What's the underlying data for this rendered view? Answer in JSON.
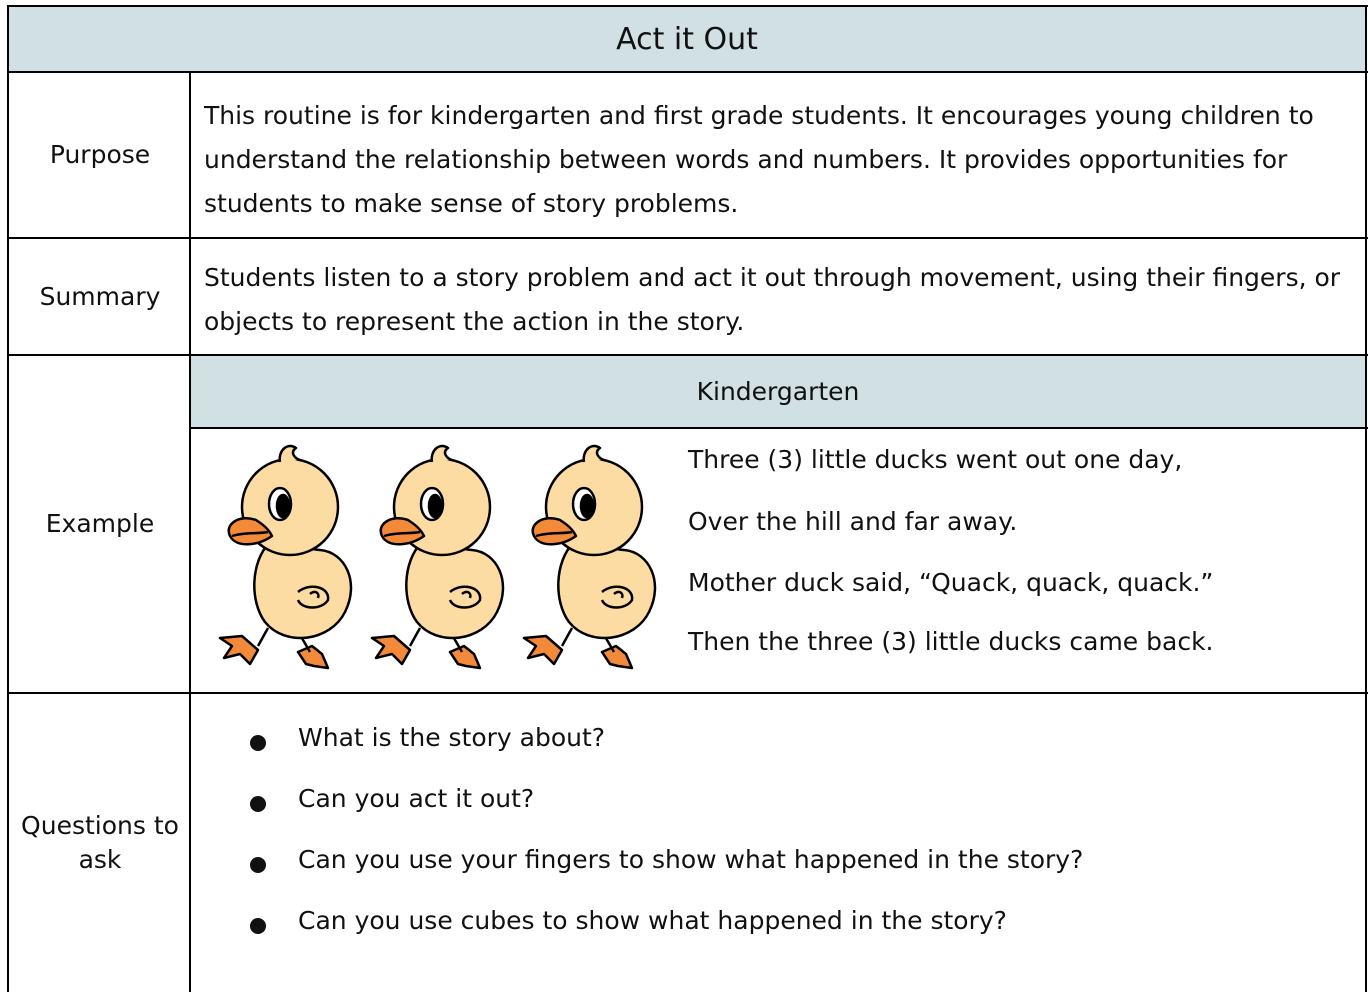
{
  "header": {
    "title": "Act it Out"
  },
  "rows": [
    {
      "label": "Purpose",
      "text": "This routine is for kindergarten and first grade students. It encourages young children to understand the relationship between words and numbers. It provides opportunities for students to make sense of  story problems."
    },
    {
      "label": "Summary",
      "text": "Students listen to a story problem and act it out through movement, using their fingers, or objects to represent the action in the story."
    }
  ],
  "example": {
    "label": "Example",
    "subheader": "Kindergarten",
    "poem": [
      "Three (3) little ducks went out one day,",
      "Over the hill and far away.",
      "Mother duck said, “Quack, quack, quack.”",
      "Then the three (3) little ducks came back."
    ]
  },
  "questions": {
    "label": "Questions to ask",
    "items": [
      "What is the story about?",
      "Can you act it out?",
      "Can you use your fingers to show what happened in the story?",
      "Can you use cubes to show what happened in the story?"
    ]
  }
}
